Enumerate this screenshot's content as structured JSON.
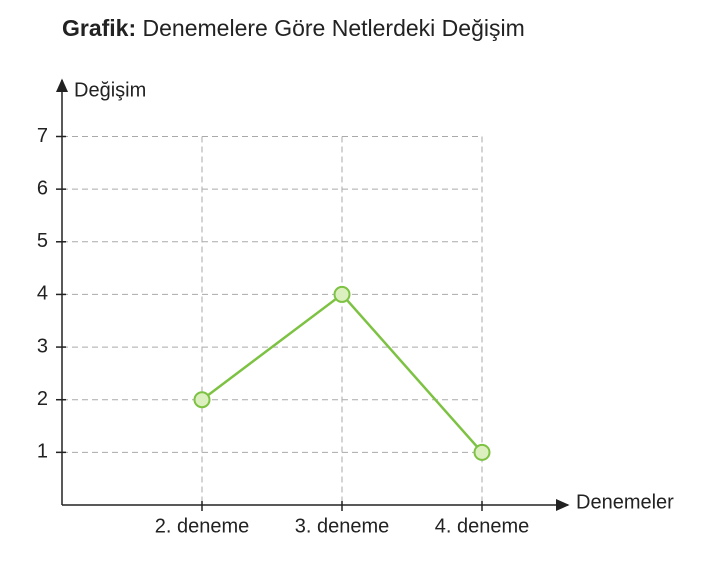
{
  "chart_data": {
    "type": "line",
    "title_label": "Grafik:",
    "title": "Denemelere Göre Netlerdeki Değişim",
    "y_label": "Değişim",
    "x_label": "Denemeler",
    "categories": [
      "2. deneme",
      "3. deneme",
      "4. deneme"
    ],
    "series": [
      {
        "color": "#7dc242",
        "values": [
          2,
          4,
          1
        ]
      }
    ],
    "ylim": [
      0,
      7
    ],
    "yticks": [
      1,
      2,
      3,
      4,
      5,
      6,
      7
    ],
    "grid": true
  }
}
